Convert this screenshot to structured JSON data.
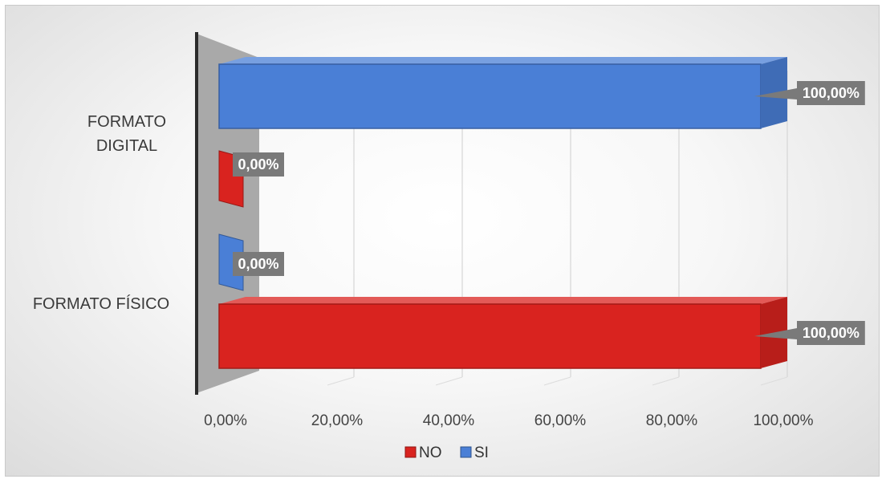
{
  "chart_data": {
    "type": "bar",
    "orientation": "horizontal",
    "style": "3d-clustered",
    "categories": [
      "FORMATO FÍSICO",
      "FORMATO DIGITAL"
    ],
    "category_lines": [
      [
        "FORMATO FÍSICO"
      ],
      [
        "FORMATO",
        "DIGITAL"
      ]
    ],
    "series": [
      {
        "name": "NO",
        "values": [
          100,
          0
        ],
        "labels": [
          "100,00%",
          "0,00%"
        ],
        "color": "#d9231f"
      },
      {
        "name": "SI",
        "values": [
          0,
          100
        ],
        "labels": [
          "0,00%",
          "100,00%"
        ],
        "color": "#4a7fd6"
      }
    ],
    "xlim": [
      0,
      100
    ],
    "x_ticks": [
      "0,00%",
      "20,00%",
      "40,00%",
      "60,00%",
      "80,00%",
      "100,00%"
    ],
    "grid": true,
    "legend_position": "bottom",
    "legend": [
      "NO",
      "SI"
    ],
    "data_label_color": "#7a7a7a"
  }
}
